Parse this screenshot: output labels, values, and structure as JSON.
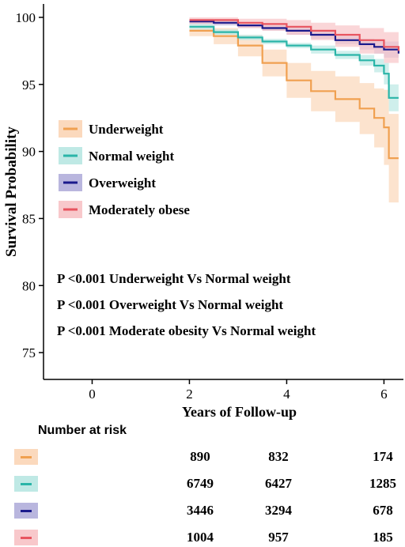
{
  "chart_data": {
    "type": "line",
    "title": "",
    "xlabel": "Years of Follow-up",
    "ylabel": "Survival Probability",
    "xlim": [
      -1,
      6.4
    ],
    "ylim": [
      73,
      101
    ],
    "x_ticks": [
      0,
      2,
      4,
      6
    ],
    "y_ticks": [
      75,
      80,
      85,
      90,
      95,
      100
    ],
    "legend_position": "left-middle",
    "series": [
      {
        "name": "Underweight",
        "color": "#f0a050",
        "band_color": "#fbd9bd",
        "x": [
          2.0,
          2.5,
          3.0,
          3.5,
          4.0,
          4.5,
          5.0,
          5.5,
          5.8,
          6.0,
          6.1,
          6.2,
          6.3
        ],
        "y": [
          99.0,
          98.6,
          97.9,
          96.6,
          95.3,
          94.5,
          93.9,
          93.2,
          92.5,
          91.8,
          89.5,
          89.5,
          89.5
        ],
        "lower": [
          98.6,
          98.0,
          97.1,
          95.6,
          94.0,
          93.0,
          92.2,
          91.3,
          90.3,
          89.0,
          86.2,
          86.2,
          86.2
        ],
        "upper": [
          99.4,
          99.2,
          98.7,
          97.6,
          96.6,
          96.0,
          95.6,
          95.1,
          94.7,
          94.6,
          92.8,
          92.8,
          92.8
        ]
      },
      {
        "name": "Normal weight",
        "color": "#2ab5a8",
        "band_color": "#bfe9e5",
        "x": [
          2.0,
          2.5,
          3.0,
          3.5,
          4.0,
          4.5,
          5.0,
          5.5,
          5.8,
          6.0,
          6.1,
          6.3
        ],
        "y": [
          99.3,
          98.9,
          98.5,
          98.2,
          97.9,
          97.6,
          97.2,
          96.8,
          96.4,
          95.8,
          94.0,
          94.0
        ],
        "lower": [
          99.1,
          98.7,
          98.3,
          98.0,
          97.7,
          97.3,
          96.9,
          96.4,
          95.9,
          95.0,
          93.0,
          93.0
        ],
        "upper": [
          99.5,
          99.1,
          98.7,
          98.4,
          98.1,
          97.9,
          97.5,
          97.2,
          96.9,
          96.6,
          95.0,
          95.0
        ]
      },
      {
        "name": "Overweight",
        "color": "#1a1a8c",
        "band_color": "#b9b6de",
        "x": [
          2.0,
          2.5,
          3.0,
          3.5,
          4.0,
          4.5,
          5.0,
          5.5,
          5.8,
          6.0,
          6.3
        ],
        "y": [
          99.7,
          99.6,
          99.4,
          99.2,
          99.0,
          98.7,
          98.3,
          98.0,
          97.8,
          97.6,
          97.3
        ],
        "lower": [
          99.5,
          99.4,
          99.2,
          99.0,
          98.7,
          98.4,
          98.0,
          97.6,
          97.3,
          97.0,
          96.8
        ],
        "upper": [
          99.9,
          99.8,
          99.6,
          99.4,
          99.3,
          99.0,
          98.6,
          98.4,
          98.3,
          98.2,
          97.8
        ]
      },
      {
        "name": "Moderately obese",
        "color": "#e8545f",
        "band_color": "#f8c8cb",
        "x": [
          2.0,
          2.5,
          3.0,
          3.5,
          4.0,
          4.5,
          5.0,
          5.5,
          6.0,
          6.3
        ],
        "y": [
          99.8,
          99.8,
          99.6,
          99.5,
          99.3,
          99.0,
          98.7,
          98.3,
          97.8,
          97.5
        ],
        "lower": [
          99.5,
          99.5,
          99.2,
          99.0,
          98.7,
          98.3,
          97.8,
          97.3,
          96.6,
          96.3
        ],
        "upper": [
          100.0,
          100.0,
          99.9,
          99.9,
          99.8,
          99.6,
          99.4,
          99.2,
          98.9,
          98.6
        ]
      }
    ],
    "annotations": [
      "P <0.001  Underweight Vs Normal weight",
      "P <0.001  Overweight Vs Normal weight",
      "P <0.001  Moderate obesity Vs Normal weight"
    ],
    "risk_table": {
      "title": "Number at risk",
      "rows": [
        {
          "color": "#f0a050",
          "band_color": "#fbd9bd",
          "values": [
            "890",
            "832",
            "174"
          ]
        },
        {
          "color": "#2ab5a8",
          "band_color": "#bfe9e5",
          "values": [
            "6749",
            "6427",
            "1285"
          ]
        },
        {
          "color": "#1a1a8c",
          "band_color": "#b9b6de",
          "values": [
            "3446",
            "3294",
            "678"
          ]
        },
        {
          "color": "#e8545f",
          "band_color": "#f8c8cb",
          "values": [
            "1004",
            "957",
            "185"
          ]
        }
      ]
    }
  }
}
